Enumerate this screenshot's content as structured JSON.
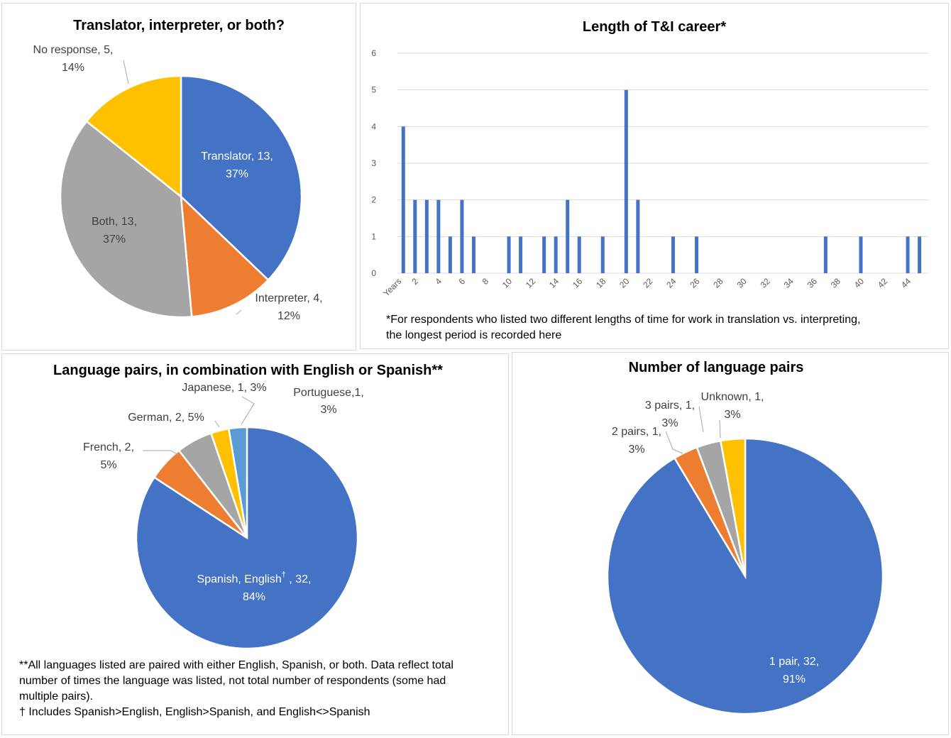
{
  "chart_data": [
    {
      "type": "pie",
      "title": "Translator, interpreter, or both?",
      "slices": [
        {
          "label": "Translator",
          "value": 13,
          "percent": "37%",
          "color": "#4472C4"
        },
        {
          "label": "Interpreter",
          "value": 4,
          "percent": "12%",
          "color": "#ED7D31"
        },
        {
          "label": "Both",
          "value": 13,
          "percent": "37%",
          "color": "#A5A5A5"
        },
        {
          "label": "No response",
          "value": 5,
          "percent": "14%",
          "color": "#FFC000"
        }
      ],
      "data_labels": [
        {
          "line1": "Translator, 13,",
          "line2": "37%"
        },
        {
          "line1": "Interpreter, 4,",
          "line2": "12%"
        },
        {
          "line1": "Both, 13,",
          "line2": "37%"
        },
        {
          "line1": "No response, 5,",
          "line2": "14%"
        }
      ]
    },
    {
      "type": "bar",
      "title": "Length of T&I career*",
      "color": "#4472C4",
      "x_first_label": "Years",
      "x": [
        1,
        2,
        3,
        4,
        5,
        6,
        7,
        8,
        9,
        10,
        11,
        12,
        13,
        14,
        15,
        16,
        17,
        18,
        19,
        20,
        21,
        22,
        23,
        24,
        25,
        26,
        27,
        28,
        29,
        30,
        31,
        32,
        33,
        34,
        35,
        36,
        37,
        38,
        39,
        40,
        41,
        42,
        43,
        44,
        45
      ],
      "values": [
        4,
        2,
        2,
        2,
        1,
        2,
        1,
        0,
        0,
        1,
        1,
        0,
        1,
        1,
        2,
        1,
        0,
        1,
        0,
        5,
        2,
        0,
        0,
        1,
        0,
        1,
        0,
        0,
        0,
        0,
        0,
        0,
        0,
        0,
        0,
        0,
        1,
        0,
        0,
        1,
        0,
        0,
        0,
        1,
        1
      ],
      "x_tick_labels": [
        "2",
        "4",
        "6",
        "8",
        "10",
        "12",
        "14",
        "16",
        "18",
        "20",
        "22",
        "24",
        "26",
        "28",
        "30",
        "32",
        "34",
        "36",
        "38",
        "40",
        "42",
        "44"
      ],
      "y_tick_labels": [
        "0",
        "1",
        "2",
        "3",
        "4",
        "5",
        "6"
      ],
      "ylim": [
        0,
        6
      ],
      "grid": true,
      "footnote_line1": "*For respondents who listed two different lengths of time for work in translation vs. interpreting,",
      "footnote_line2": "the longest period is recorded here"
    },
    {
      "type": "pie",
      "title": "Language pairs, in combination with English or Spanish**",
      "slices": [
        {
          "label": "Spanish, English†",
          "value": 32,
          "percent": "84%",
          "color": "#4472C4"
        },
        {
          "label": "French",
          "value": 2,
          "percent": "5%",
          "color": "#ED7D31"
        },
        {
          "label": "German",
          "value": 2,
          "percent": "5%",
          "color": "#A5A5A5"
        },
        {
          "label": "Japanese",
          "value": 1,
          "percent": "3%",
          "color": "#FFC000"
        },
        {
          "label": "Portuguese",
          "value": 1,
          "percent": "3%",
          "color": "#5B9BD5"
        }
      ],
      "data_labels": [
        {
          "line1_a": "Spanish, English",
          "sup": "†",
          "line1_b": " , 32,",
          "line2": "84%"
        },
        {
          "line1": "French, 2,",
          "line2": "5%"
        },
        {
          "line1": "German, 2, 5%"
        },
        {
          "line1": "Japanese, 1, 3%"
        },
        {
          "line1": "Portuguese,1,",
          "line2": "3%"
        }
      ],
      "footnote_line1": "**All languages listed are paired with either English, Spanish, or both. Data reflect total",
      "footnote_line2": "number of times the language was listed, not total number of respondents (some had",
      "footnote_line3": "multiple pairs).",
      "footnote_line4": "† Includes Spanish>English, English>Spanish, and English<>Spanish"
    },
    {
      "type": "pie",
      "title": "Number of language pairs",
      "slices": [
        {
          "label": "1 pair",
          "value": 32,
          "percent": "91%",
          "color": "#4472C4"
        },
        {
          "label": "2 pairs",
          "value": 1,
          "percent": "3%",
          "color": "#ED7D31"
        },
        {
          "label": "3 pairs",
          "value": 1,
          "percent": "3%",
          "color": "#A5A5A5"
        },
        {
          "label": "Unknown",
          "value": 1,
          "percent": "3%",
          "color": "#FFC000"
        }
      ],
      "data_labels": [
        {
          "line1": "1 pair, 32,",
          "line2": "91%"
        },
        {
          "line1": "2 pairs, 1,",
          "line2": "3%"
        },
        {
          "line1": "3 pairs, 1,",
          "line2": "3%"
        },
        {
          "line1": "Unknown, 1,",
          "line2": "3%"
        }
      ]
    }
  ]
}
